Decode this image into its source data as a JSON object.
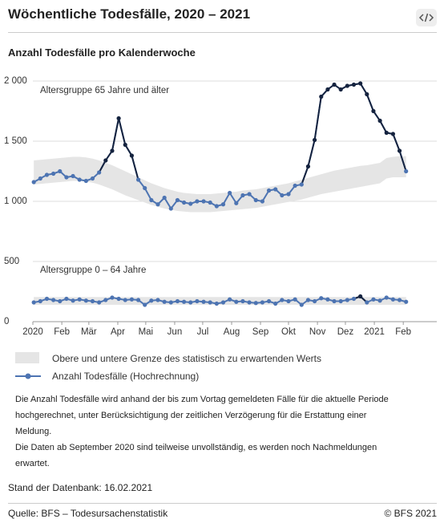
{
  "header": {
    "title": "Wöchentliche Todesfälle, 2020 – 2021"
  },
  "chart_data": {
    "type": "line",
    "title": "Anzahl Todesfälle pro Kalenderwoche",
    "x": [
      1,
      2,
      3,
      4,
      5,
      6,
      7,
      8,
      9,
      10,
      11,
      12,
      13,
      14,
      15,
      16,
      17,
      18,
      19,
      20,
      21,
      22,
      23,
      24,
      25,
      26,
      27,
      28,
      29,
      30,
      31,
      32,
      33,
      34,
      35,
      36,
      37,
      38,
      39,
      40,
      41,
      42,
      43,
      44,
      45,
      46,
      47,
      48,
      49,
      50,
      51,
      52,
      53,
      54,
      55,
      56,
      57,
      58
    ],
    "xlim": [
      0.857,
      62.7
    ],
    "xticks": [
      {
        "value": 0.857,
        "label": "2020"
      },
      {
        "value": 5.29,
        "label": "Feb"
      },
      {
        "value": 9.43,
        "label": "Mär"
      },
      {
        "value": 13.86,
        "label": "Apr"
      },
      {
        "value": 18.14,
        "label": "Mai"
      },
      {
        "value": 22.57,
        "label": "Jun"
      },
      {
        "value": 26.86,
        "label": "Jul"
      },
      {
        "value": 31.29,
        "label": "Aug"
      },
      {
        "value": 35.71,
        "label": "Sep"
      },
      {
        "value": 40.0,
        "label": "Okt"
      },
      {
        "value": 44.43,
        "label": "Nov"
      },
      {
        "value": 48.71,
        "label": "Dez"
      },
      {
        "value": 53.14,
        "label": "2021"
      },
      {
        "value": 57.57,
        "label": "Feb"
      }
    ],
    "ylim": [
      0,
      2000
    ],
    "yticks": [
      0,
      500,
      {
        "value": 1000,
        "label": "1 000"
      },
      {
        "value": 1500,
        "label": "1 500"
      },
      {
        "value": 2000,
        "label": "2 000"
      }
    ],
    "grid": true,
    "color": "#4d74b2",
    "excess_color": "#15233f",
    "band_color": "#e5e5e5",
    "series": [
      {
        "name": "Altersgruppe 65 Jahre und älter",
        "values": [
          1160,
          1190,
          1220,
          1230,
          1250,
          1200,
          1210,
          1180,
          1170,
          1190,
          1240,
          1340,
          1420,
          1690,
          1470,
          1380,
          1180,
          1110,
          1010,
          975,
          1030,
          940,
          1010,
          990,
          980,
          1000,
          1000,
          990,
          960,
          975,
          1070,
          985,
          1050,
          1060,
          1010,
          1000,
          1090,
          1100,
          1050,
          1060,
          1130,
          1140,
          1290,
          1510,
          1870,
          1930,
          1970,
          1930,
          1960,
          1970,
          1980,
          1890,
          1750,
          1670,
          1570,
          1560,
          1420,
          1250
        ],
        "upper": [
          1340,
          1345,
          1350,
          1355,
          1360,
          1365,
          1370,
          1370,
          1365,
          1355,
          1340,
          1320,
          1300,
          1275,
          1250,
          1225,
          1200,
          1175,
          1150,
          1130,
          1110,
          1095,
          1080,
          1070,
          1065,
          1060,
          1060,
          1060,
          1065,
          1070,
          1075,
          1080,
          1090,
          1095,
          1100,
          1110,
          1120,
          1130,
          1140,
          1150,
          1165,
          1180,
          1195,
          1210,
          1225,
          1240,
          1255,
          1265,
          1275,
          1285,
          1295,
          1300,
          1310,
          1320,
          1360,
          1370,
          1375,
          1375
        ],
        "lower": [
          1140,
          1145,
          1150,
          1155,
          1160,
          1165,
          1170,
          1170,
          1165,
          1155,
          1140,
          1120,
          1100,
          1075,
          1050,
          1030,
          1010,
          990,
          970,
          955,
          940,
          930,
          920,
          915,
          910,
          910,
          910,
          910,
          915,
          920,
          925,
          930,
          935,
          940,
          945,
          955,
          965,
          975,
          985,
          995,
          1005,
          1015,
          1030,
          1045,
          1060,
          1070,
          1080,
          1090,
          1100,
          1110,
          1120,
          1130,
          1140,
          1150,
          1190,
          1200,
          1200,
          1200
        ]
      },
      {
        "name": "Altersgruppe 0 – 64 Jahre",
        "values": [
          160,
          170,
          190,
          180,
          170,
          190,
          175,
          185,
          175,
          170,
          160,
          180,
          200,
          190,
          180,
          185,
          180,
          140,
          175,
          180,
          165,
          160,
          170,
          165,
          160,
          170,
          165,
          160,
          150,
          160,
          185,
          165,
          170,
          160,
          155,
          160,
          170,
          150,
          180,
          170,
          185,
          140,
          180,
          170,
          195,
          185,
          170,
          170,
          180,
          190,
          210,
          160,
          185,
          175,
          200,
          185,
          180,
          165
        ],
        "upper": [
          205,
          205,
          205,
          205,
          205,
          205,
          205,
          205,
          205,
          205,
          205,
          205,
          205,
          205,
          205,
          205,
          205,
          205,
          205,
          205,
          205,
          205,
          205,
          205,
          205,
          205,
          205,
          205,
          205,
          205,
          205,
          205,
          205,
          205,
          205,
          205,
          205,
          205,
          205,
          205,
          205,
          205,
          205,
          205,
          205,
          205,
          205,
          205,
          205,
          205,
          205,
          205,
          205,
          205,
          205,
          205,
          205,
          205
        ],
        "lower": [
          140,
          140,
          140,
          140,
          140,
          140,
          140,
          140,
          140,
          140,
          140,
          140,
          140,
          140,
          140,
          140,
          140,
          140,
          140,
          140,
          140,
          140,
          140,
          140,
          140,
          140,
          140,
          140,
          140,
          140,
          140,
          140,
          140,
          140,
          140,
          140,
          140,
          140,
          140,
          140,
          140,
          140,
          140,
          140,
          140,
          140,
          140,
          140,
          140,
          140,
          140,
          140,
          140,
          140,
          140,
          140,
          140,
          140
        ]
      }
    ],
    "legend": {
      "band": "Obere und untere Grenze des statistisch zu erwartenden Werts",
      "line": "Anzahl Todesfälle (Hochrechnung)"
    }
  },
  "notes": [
    "Die Anzahl Todesfälle wird anhand der bis zum Vortag gemeldeten Fälle für die aktuelle Periode hochgerechnet, unter Berücksichtigung der zeitlichen Verzögerung für die Erstattung einer Meldung.",
    "Die Daten ab September 2020 sind teilweise unvollständig, es werden noch Nachmeldungen erwartet."
  ],
  "stand": "Stand der Datenbank: 16.02.2021",
  "footer": {
    "source": "Quelle: BFS – Todesursachenstatistik",
    "copyright": "© BFS 2021"
  }
}
